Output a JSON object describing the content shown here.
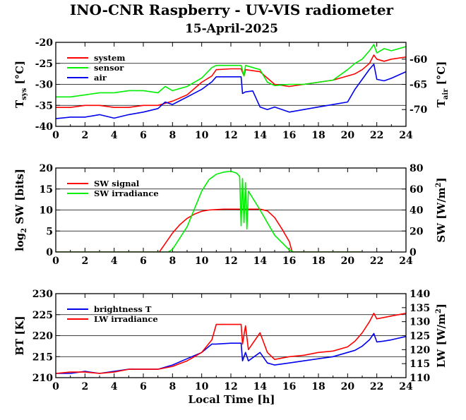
{
  "figure": {
    "title": "INO-CNR Raspberry - UV-VIS radiometer",
    "subtitle": "15-April-2025",
    "xlabel": "Local Time [h]"
  },
  "colors": {
    "red": "#ff0000",
    "green": "#00ee00",
    "blue": "#0000ee"
  },
  "chart_data": [
    {
      "type": "line",
      "panel": "temperatures",
      "xlim": [
        0,
        24
      ],
      "xticks": [
        "0",
        "2",
        "4",
        "6",
        "8",
        "10",
        "12",
        "14",
        "16",
        "18",
        "20",
        "22",
        "24"
      ],
      "ylim": [
        -40,
        -20
      ],
      "yticks": [
        "-40",
        "-35",
        "-30",
        "-25",
        "-20"
      ],
      "y2lim": [
        -73.33,
        -56.67
      ],
      "y2ticks": [
        "-70",
        "-65",
        "-60"
      ],
      "ylabel_main": "T",
      "ylabel_sub": "sys",
      "ylabel_unit": " [°C]",
      "y2label_main": "T",
      "y2label_sub": "air",
      "y2label_unit": " [°C]",
      "grid": true,
      "legend_position": "top-left",
      "series": [
        {
          "name": "system",
          "color": "red",
          "axis": "left",
          "x": [
            0,
            1,
            2,
            3,
            4,
            5,
            6,
            7,
            8,
            9,
            10,
            10.7,
            11,
            12,
            12.7,
            12.9,
            13,
            14,
            14.5,
            15,
            16,
            17,
            18,
            19,
            20,
            20.5,
            21,
            21.5,
            21.8,
            22,
            22.5,
            23,
            24
          ],
          "y": [
            -35.5,
            -35.5,
            -35,
            -35,
            -35.5,
            -35.5,
            -35,
            -35,
            -34,
            -32.5,
            -29.5,
            -28,
            -26.5,
            -26.3,
            -26.3,
            -28,
            -26.5,
            -27,
            -28.5,
            -30,
            -30.5,
            -30,
            -29.5,
            -29,
            -28,
            -27.5,
            -26.5,
            -25,
            -23,
            -24,
            -24.5,
            -24,
            -23.5
          ]
        },
        {
          "name": "sensor",
          "color": "green",
          "axis": "left",
          "x": [
            0,
            1,
            2,
            3,
            4,
            5,
            6,
            7,
            7.5,
            8,
            9,
            10,
            10.7,
            11,
            12,
            12.7,
            12.9,
            13,
            14,
            14.5,
            15,
            16,
            17,
            18,
            19,
            20,
            20.5,
            21,
            21.5,
            21.8,
            22,
            22.5,
            23,
            24
          ],
          "y": [
            -33,
            -33,
            -32.5,
            -32,
            -32,
            -31.5,
            -31.5,
            -32,
            -30.5,
            -31.5,
            -30.5,
            -28.5,
            -26,
            -25.5,
            -25.5,
            -25.5,
            -28,
            -25.5,
            -26.5,
            -29.5,
            -30.3,
            -30,
            -30,
            -29.5,
            -29,
            -26.5,
            -25,
            -24,
            -22,
            -20.5,
            -22.5,
            -21.5,
            -22,
            -21
          ]
        },
        {
          "name": "air",
          "color": "blue",
          "axis": "right",
          "x": [
            0,
            1,
            2,
            3,
            4,
            5,
            6,
            7,
            7.5,
            8,
            9,
            10,
            10.7,
            11,
            12,
            12.7,
            12.8,
            13,
            13.5,
            14,
            14.5,
            15,
            16,
            17,
            18,
            19,
            20,
            20.5,
            21,
            21.5,
            21.8,
            22,
            22.5,
            23,
            24
          ],
          "y": [
            -71.8,
            -71.5,
            -71.5,
            -71,
            -71.7,
            -71,
            -70.5,
            -69.8,
            -68.5,
            -69,
            -67.5,
            -66,
            -64.5,
            -63.5,
            -63.5,
            -63.5,
            -66.8,
            -66.5,
            -66.3,
            -69.5,
            -70,
            -69.5,
            -70.5,
            -70,
            -69.5,
            -69,
            -68.5,
            -66,
            -64,
            -62,
            -61,
            -64,
            -64.3,
            -63.8,
            -62.5
          ]
        }
      ]
    },
    {
      "type": "line",
      "panel": "shortwave",
      "xlim": [
        0,
        24
      ],
      "xticks": [
        "0",
        "2",
        "4",
        "6",
        "8",
        "10",
        "12",
        "14",
        "16",
        "18",
        "20",
        "22",
        "24"
      ],
      "ylim": [
        0,
        20
      ],
      "yticks": [
        "0",
        "5",
        "10",
        "15",
        "20"
      ],
      "y2lim": [
        0,
        80
      ],
      "y2ticks": [
        "0",
        "20",
        "40",
        "60",
        "80"
      ],
      "ylabel_main": "log",
      "ylabel_sub": "2",
      "ylabel_unit": " SW [bits]",
      "y2label_main": "SW [W/m",
      "y2label_sup": "2",
      "y2label_unit": "]",
      "grid": true,
      "legend_position": "top-left",
      "series": [
        {
          "name": "SW signal",
          "color": "red",
          "axis": "left",
          "x": [
            0,
            7.1,
            7.5,
            8,
            8.5,
            9,
            9.5,
            10,
            10.5,
            11,
            11.5,
            12,
            13,
            14,
            14.5,
            15,
            15.5,
            16,
            16.2,
            16.5,
            21
          ],
          "y": [
            0,
            0,
            2,
            4.5,
            6.5,
            8,
            9,
            9.7,
            10,
            10.1,
            10.2,
            10.2,
            10.2,
            10.2,
            9.8,
            8.2,
            5.5,
            2.5,
            0,
            0,
            0
          ]
        },
        {
          "name": "SW irradiance",
          "color": "green",
          "axis": "right",
          "x": [
            0,
            7.7,
            8,
            9,
            10,
            10.5,
            11,
            11.5,
            12,
            12.4,
            12.6,
            12.7,
            12.8,
            12.9,
            13,
            13.1,
            13.2,
            14,
            15,
            16,
            16.3,
            21
          ],
          "y": [
            0,
            0,
            2.5,
            24,
            58,
            69,
            74,
            76,
            77,
            75,
            72,
            25,
            70,
            28,
            66,
            22,
            58,
            40,
            16,
            2,
            0,
            0
          ]
        }
      ]
    },
    {
      "type": "line",
      "panel": "longwave",
      "xlim": [
        0,
        24
      ],
      "xticks": [
        "0",
        "2",
        "4",
        "6",
        "8",
        "10",
        "12",
        "14",
        "16",
        "18",
        "20",
        "22",
        "24"
      ],
      "ylim": [
        210,
        230
      ],
      "yticks": [
        "210",
        "215",
        "220",
        "225",
        "230"
      ],
      "y2lim": [
        110,
        140
      ],
      "y2ticks": [
        "110",
        "115",
        "120",
        "125",
        "130",
        "135",
        "140"
      ],
      "ylabel_main": "BT [K]",
      "y2label_main": "LW [W/m",
      "y2label_sup": "2",
      "y2label_unit": "]",
      "grid": true,
      "legend_position": "top-left",
      "series": [
        {
          "name": "brightness T",
          "color": "blue",
          "axis": "left",
          "x": [
            0,
            1,
            2,
            3,
            4,
            5,
            6,
            7,
            8,
            9,
            10,
            10.7,
            11,
            12,
            12.7,
            12.8,
            13,
            13.2,
            14,
            14.5,
            15,
            16,
            17,
            18,
            19,
            20,
            20.5,
            21,
            21.5,
            21.8,
            22,
            22.5,
            23,
            24
          ],
          "y": [
            211,
            211,
            211.5,
            211,
            211.5,
            212,
            212,
            212,
            213,
            214.5,
            216,
            218,
            218,
            218.2,
            218.2,
            214,
            216,
            214,
            216,
            213.5,
            213,
            213.5,
            214,
            214.5,
            215,
            216,
            216.5,
            217.5,
            219,
            220.5,
            218.5,
            218.7,
            219,
            219.8
          ]
        },
        {
          "name": "LW irradiance",
          "color": "red",
          "axis": "right",
          "x": [
            0,
            1,
            2,
            3,
            4,
            5,
            6,
            7,
            8,
            9,
            10,
            10.7,
            11,
            12,
            12.7,
            12.8,
            13,
            13.2,
            14,
            14.5,
            15,
            16,
            17,
            18,
            19,
            20,
            20.5,
            21,
            21.5,
            21.8,
            22,
            22.5,
            23,
            24
          ],
          "y": [
            111.5,
            112,
            112,
            111.5,
            112,
            113,
            113,
            113,
            114,
            116,
            119,
            123.5,
            129,
            129,
            129,
            122,
            128.5,
            120,
            126,
            119,
            116.5,
            117.5,
            118,
            119,
            119.5,
            121,
            123,
            126,
            130,
            133,
            131,
            131.5,
            132,
            133
          ]
        }
      ]
    }
  ]
}
